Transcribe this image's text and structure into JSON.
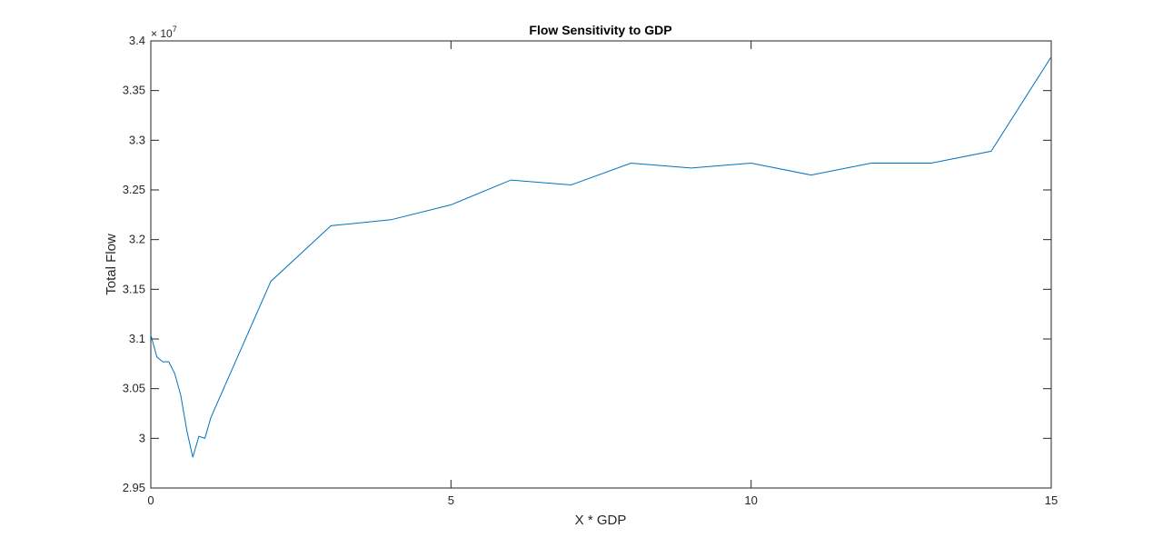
{
  "chart_data": {
    "type": "line",
    "title": "Flow Sensitivity to GDP",
    "xlabel": "X * GDP",
    "ylabel": "Total Flow",
    "y_exponent_base": "× 10",
    "y_exponent_power": "7",
    "xlim": [
      0,
      15
    ],
    "ylim": [
      2.95,
      3.4
    ],
    "xticks": [
      0,
      5,
      10,
      15
    ],
    "xtick_labels": [
      "0",
      "5",
      "10",
      "15"
    ],
    "yticks": [
      2.95,
      3.0,
      3.05,
      3.1,
      3.15,
      3.2,
      3.25,
      3.3,
      3.35,
      3.4
    ],
    "ytick_labels": [
      "2.95",
      "3",
      "3.05",
      "3.1",
      "3.15",
      "3.2",
      "3.25",
      "3.3",
      "3.35",
      "3.4"
    ],
    "grid": false,
    "series": [
      {
        "color": "#0072bd",
        "x": [
          0,
          0.1,
          0.2,
          0.3,
          0.4,
          0.5,
          0.6,
          0.7,
          0.8,
          0.9,
          1,
          2,
          3,
          4,
          5,
          6,
          7,
          8,
          9,
          10,
          11,
          12,
          13,
          14,
          15
        ],
        "y": [
          3.104,
          3.082,
          3.077,
          3.077,
          3.065,
          3.043,
          3.008,
          2.981,
          3.002,
          3.0,
          3.021,
          3.158,
          3.214,
          3.22,
          3.235,
          3.26,
          3.255,
          3.277,
          3.272,
          3.277,
          3.265,
          3.277,
          3.277,
          3.289,
          3.384
        ]
      }
    ]
  }
}
